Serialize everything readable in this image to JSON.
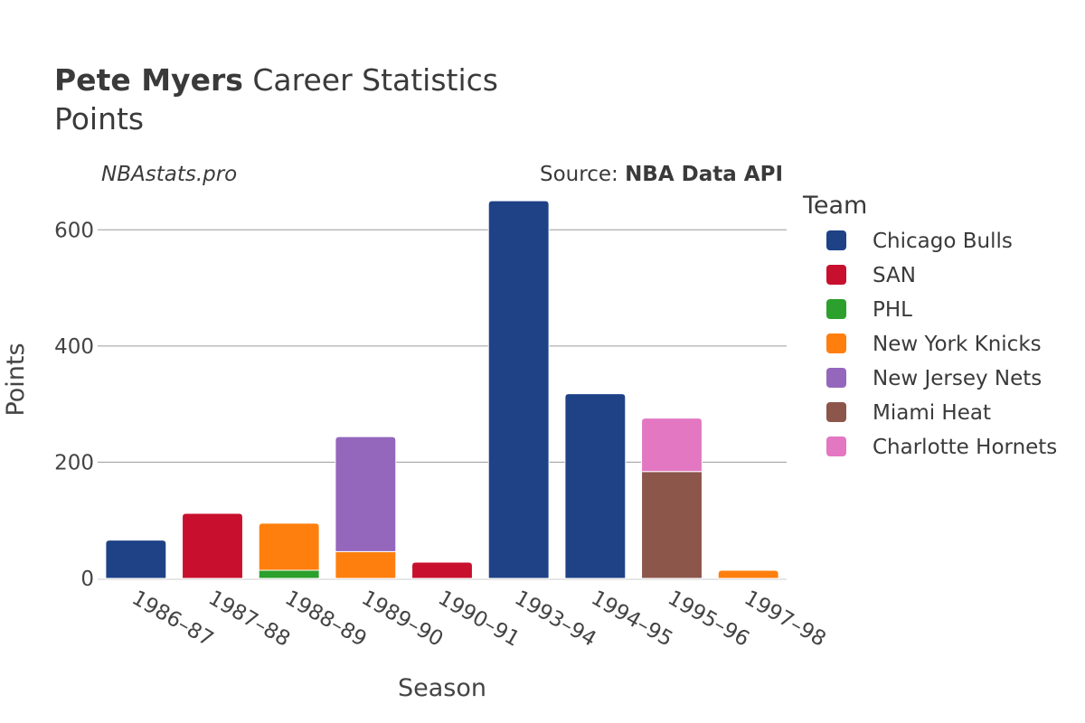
{
  "header": {
    "player": "Pete Myers",
    "title_rest": " Career Statistics",
    "subtitle": "Points",
    "site": "NBAstats.pro",
    "source_label": "Source: ",
    "source_name": "NBA Data API"
  },
  "chart_data": {
    "type": "bar",
    "stacked": true,
    "xlabel": "Season",
    "ylabel": "Points",
    "ylim": [
      0,
      700
    ],
    "yticks": [
      0,
      200,
      400,
      600
    ],
    "grid": true,
    "legend_title": "Team",
    "legend_position": "right",
    "categories": [
      "1986–87",
      "1987–88",
      "1988–89",
      "1989–90",
      "1990–91",
      "1993–94",
      "1994–95",
      "1995–96",
      "1997–98"
    ],
    "series": [
      {
        "name": "Chicago Bulls",
        "color": "#1f4287",
        "values": [
          66,
          0,
          0,
          0,
          0,
          650,
          318,
          0,
          0
        ]
      },
      {
        "name": "SAN",
        "color": "#c8102e",
        "values": [
          0,
          112,
          0,
          0,
          28,
          0,
          0,
          0,
          0
        ]
      },
      {
        "name": "PHL",
        "color": "#2ca02c",
        "values": [
          0,
          0,
          14,
          0,
          0,
          0,
          0,
          0,
          0
        ]
      },
      {
        "name": "New York Knicks",
        "color": "#ff7f0e",
        "values": [
          0,
          0,
          81,
          46,
          0,
          0,
          0,
          0,
          14
        ]
      },
      {
        "name": "New Jersey Nets",
        "color": "#9467bd",
        "values": [
          0,
          0,
          0,
          198,
          0,
          0,
          0,
          0,
          0
        ]
      },
      {
        "name": "Miami Heat",
        "color": "#8c564b",
        "values": [
          0,
          0,
          0,
          0,
          0,
          0,
          0,
          184,
          0
        ]
      },
      {
        "name": "Charlotte Hornets",
        "color": "#e377c2",
        "values": [
          0,
          0,
          0,
          0,
          0,
          0,
          0,
          92,
          0
        ]
      }
    ]
  }
}
